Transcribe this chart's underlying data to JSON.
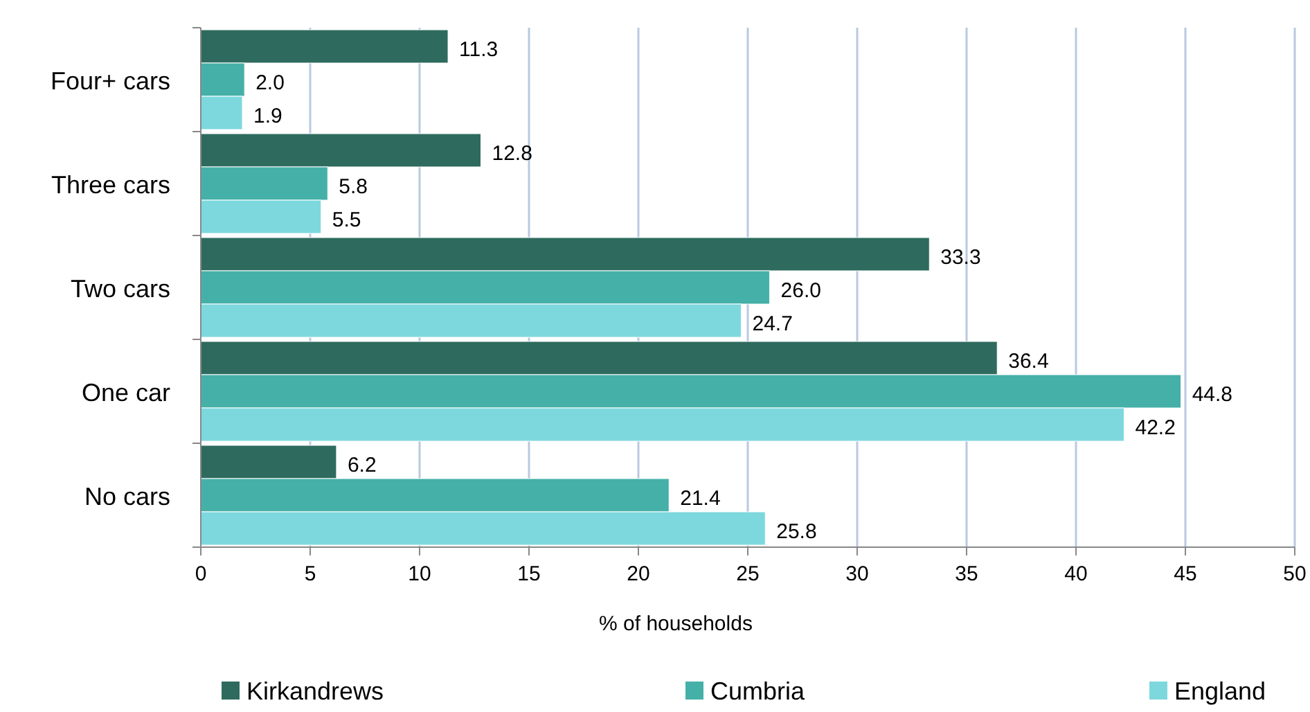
{
  "chart_data": {
    "type": "bar",
    "orientation": "horizontal",
    "xlabel": "% of households",
    "categories": [
      "Four+ cars",
      "Three cars",
      "Two cars",
      "One car",
      "No cars"
    ],
    "series": [
      {
        "name": "Kirkandrews",
        "color": "#2e6b5e",
        "values": [
          11.3,
          12.8,
          33.3,
          36.4,
          6.2
        ],
        "value_labels": [
          "11.3",
          "12.8",
          "33.3",
          "36.4",
          "6.2"
        ]
      },
      {
        "name": "Cumbria",
        "color": "#45b0a8",
        "values": [
          2.0,
          5.8,
          26.0,
          44.8,
          21.4
        ],
        "value_labels": [
          "2.0",
          "5.8",
          "26.0",
          "44.8",
          "21.4"
        ]
      },
      {
        "name": "England",
        "color": "#7dd8de",
        "values": [
          1.9,
          5.5,
          24.7,
          42.2,
          25.8
        ],
        "value_labels": [
          "1.9",
          "5.5",
          "24.7",
          "42.2",
          "25.8"
        ]
      }
    ],
    "xlim": [
      0,
      50
    ],
    "xticks": [
      0,
      5,
      10,
      15,
      20,
      25,
      30,
      35,
      40,
      45,
      50
    ],
    "grid": "x",
    "legend": "bottom"
  }
}
